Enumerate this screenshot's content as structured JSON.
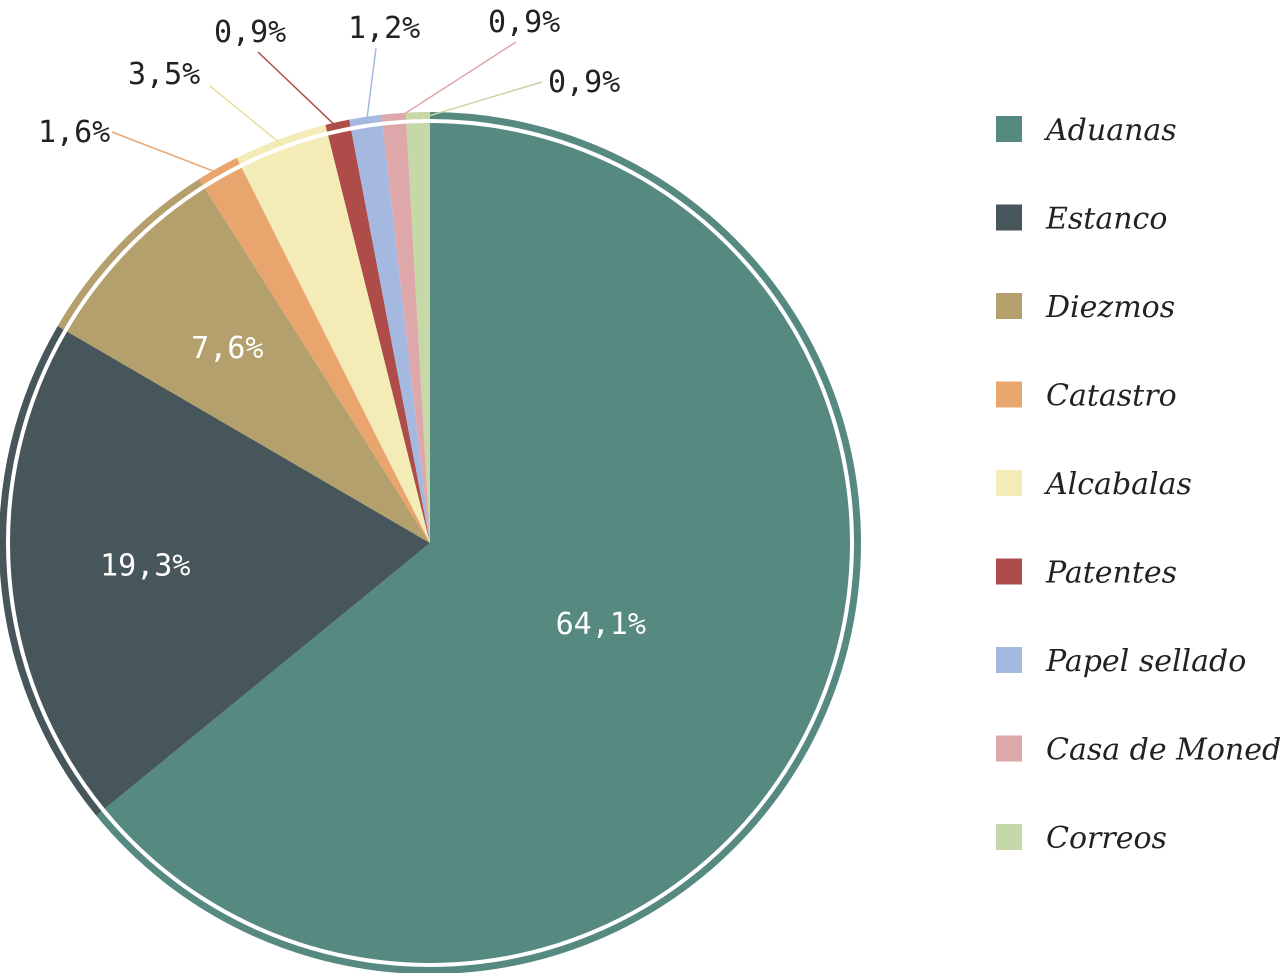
{
  "chart_data": {
    "type": "pie",
    "start_angle_deg": 0,
    "direction": "clockwise-from-top",
    "legend_position": "right",
    "slices": [
      {
        "label": "Aduanas",
        "value": 64.1,
        "display": "64,1%",
        "color": "#568a80",
        "label_color": "#ffffff",
        "label_placement": "inside"
      },
      {
        "label": "Estanco",
        "value": 19.3,
        "display": "19,3%",
        "color": "#46565a",
        "label_color": "#ffffff",
        "label_placement": "inside"
      },
      {
        "label": "Diezmos",
        "value": 7.6,
        "display": "7,6%",
        "color": "#b3a06d",
        "label_color": "#ffffff",
        "label_placement": "inside"
      },
      {
        "label": "Catastro",
        "value": 1.6,
        "display": "1,6%",
        "color": "#e8a66e",
        "label_color": "#222222",
        "label_placement": "outside"
      },
      {
        "label": "Alcabalas",
        "value": 3.5,
        "display": "3,5%",
        "color": "#f3ecb6",
        "label_color": "#222222",
        "label_placement": "outside"
      },
      {
        "label": "Patentes",
        "value": 0.9,
        "display": "0,9%",
        "color": "#ad4c48",
        "label_color": "#222222",
        "label_placement": "outside"
      },
      {
        "label": "Papel sellado",
        "value": 1.2,
        "display": "1,2%",
        "color": "#a5b8e0",
        "label_color": "#222222",
        "label_placement": "outside"
      },
      {
        "label": "Casa de Moneda",
        "value": 0.9,
        "display": "0,9%",
        "color": "#dea7aa",
        "label_color": "#222222",
        "label_placement": "outside"
      },
      {
        "label": "Correos",
        "value": 0.9,
        "display": "0,9%",
        "color": "#c6d7a8",
        "label_color": "#222222",
        "label_placement": "outside"
      }
    ]
  }
}
